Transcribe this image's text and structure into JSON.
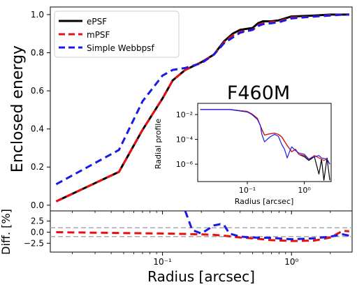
{
  "chart_data": [
    {
      "type": "line",
      "xscale": "log",
      "xlim": [
        0.0135,
        2.95
      ],
      "ylim": [
        -0.03,
        1.04
      ],
      "xlabel": "",
      "ylabel": "Enclosed energy",
      "x_ticks": [
        0.1,
        1.0
      ],
      "x_tick_labels": [
        "10⁻¹",
        "10⁰"
      ],
      "y_ticks": [
        0.0,
        0.2,
        0.4,
        0.6,
        0.8,
        1.0
      ],
      "y_tick_labels": [
        "0.0",
        "0.2",
        "0.4",
        "0.6",
        "0.8",
        "1.0"
      ],
      "grid": false,
      "legend_position": "top-left",
      "annotation": "F460M",
      "series": [
        {
          "name": "ePSF",
          "color": "#000000",
          "dash": "solid",
          "x": [
            0.015,
            0.046,
            0.07,
            0.1,
            0.12,
            0.15,
            0.2,
            0.25,
            0.3,
            0.35,
            0.4,
            0.5,
            0.55,
            0.6,
            0.7,
            0.8,
            1.0,
            1.5,
            2.0,
            2.5,
            2.8
          ],
          "y": [
            0.02,
            0.175,
            0.395,
            0.56,
            0.655,
            0.71,
            0.75,
            0.79,
            0.86,
            0.9,
            0.92,
            0.93,
            0.955,
            0.965,
            0.965,
            0.97,
            0.99,
            0.995,
            1.0,
            1.0,
            1.0
          ]
        },
        {
          "name": "mPSF",
          "color": "#e8100f",
          "dash": "dashed",
          "x": [
            0.015,
            0.046,
            0.07,
            0.1,
            0.12,
            0.15,
            0.2,
            0.25,
            0.3,
            0.35,
            0.4,
            0.5,
            0.55,
            0.6,
            0.7,
            0.8,
            1.0,
            1.5,
            2.0,
            2.5,
            2.8
          ],
          "y": [
            0.02,
            0.175,
            0.395,
            0.56,
            0.655,
            0.71,
            0.75,
            0.79,
            0.855,
            0.89,
            0.91,
            0.92,
            0.945,
            0.955,
            0.96,
            0.965,
            0.985,
            0.99,
            0.998,
            1.0,
            1.0
          ]
        },
        {
          "name": "Simple Webbpsf",
          "color": "#1a1ae6",
          "dash": "dashed",
          "x": [
            0.015,
            0.046,
            0.07,
            0.1,
            0.12,
            0.15,
            0.2,
            0.25,
            0.3,
            0.35,
            0.4,
            0.5,
            0.55,
            0.6,
            0.7,
            0.8,
            1.0,
            1.5,
            2.0,
            2.5,
            2.8
          ],
          "y": [
            0.11,
            0.29,
            0.545,
            0.68,
            0.71,
            0.72,
            0.745,
            0.79,
            0.85,
            0.88,
            0.905,
            0.92,
            0.94,
            0.95,
            0.955,
            0.96,
            0.98,
            0.99,
            0.995,
            1.0,
            1.0
          ]
        }
      ]
    },
    {
      "type": "line",
      "xscale": "log",
      "yscale": "log",
      "xlim": [
        0.0135,
        2.95
      ],
      "ylim_exponent": [
        -7.4,
        -1.1
      ],
      "xlabel": "Radius [arcsec]",
      "ylabel": "Radial profile",
      "x_ticks": [
        0.1,
        1.0
      ],
      "x_tick_labels": [
        "10⁻¹",
        "10⁰"
      ],
      "y_tick_exponents": [
        -2,
        -4,
        -6
      ],
      "y_tick_labels": [
        "10⁻²",
        "10⁻⁴",
        "10⁻⁶"
      ],
      "grid": false,
      "series": [
        {
          "name": "ePSF",
          "color": "#000000",
          "x": [
            0.015,
            0.05,
            0.1,
            0.12,
            0.15,
            0.18,
            0.2,
            0.25,
            0.3,
            0.35,
            0.4,
            0.5,
            0.6,
            0.7,
            0.8,
            1.0,
            1.2,
            1.5,
            1.8,
            2.0,
            2.2,
            2.5,
            2.8
          ],
          "log10_y": [
            -1.6,
            -1.6,
            -1.75,
            -1.95,
            -2.3,
            -3.2,
            -3.65,
            -3.55,
            -3.5,
            -3.6,
            -3.8,
            -4.5,
            -5.0,
            -4.8,
            -5.2,
            -5.4,
            -5.7,
            -5.4,
            -6.8,
            -5.6,
            -7.3,
            -5.5,
            -7.3
          ]
        },
        {
          "name": "mPSF",
          "color": "#e8100f",
          "x": [
            0.015,
            0.05,
            0.1,
            0.12,
            0.15,
            0.18,
            0.2,
            0.25,
            0.3,
            0.35,
            0.4,
            0.5,
            0.6,
            0.7,
            0.8,
            1.0,
            1.2,
            1.5,
            1.8,
            2.0,
            2.2,
            2.5,
            2.8
          ],
          "log10_y": [
            -1.6,
            -1.6,
            -1.75,
            -1.95,
            -2.3,
            -3.2,
            -3.65,
            -3.55,
            -3.5,
            -3.6,
            -3.8,
            -4.5,
            -5.0,
            -4.8,
            -5.2,
            -5.3,
            -5.6,
            -5.3,
            -5.5,
            -5.6,
            -5.7,
            -5.6,
            -6.0
          ]
        },
        {
          "name": "Simple Webbpsf",
          "color": "#1a1ae6",
          "x": [
            0.015,
            0.05,
            0.1,
            0.12,
            0.15,
            0.17,
            0.18,
            0.2,
            0.25,
            0.3,
            0.35,
            0.4,
            0.45,
            0.5,
            0.55,
            0.6,
            0.7,
            0.8,
            1.0,
            1.2,
            1.5,
            1.8,
            2.0,
            2.5,
            2.8
          ],
          "log10_y": [
            -1.6,
            -1.6,
            -1.8,
            -2.0,
            -2.4,
            -2.9,
            -3.6,
            -4.2,
            -3.8,
            -3.6,
            -3.75,
            -4.4,
            -4.8,
            -5.5,
            -5.0,
            -4.6,
            -4.9,
            -5.1,
            -5.2,
            -5.6,
            -5.4,
            -5.3,
            -5.5,
            -5.6,
            -6.0
          ]
        }
      ]
    },
    {
      "type": "line",
      "xscale": "log",
      "xlim": [
        0.0135,
        2.95
      ],
      "ylim": [
        -4.5,
        4.8
      ],
      "xlabel": "Radius [arcsec]",
      "ylabel": "Diff. [%]",
      "x_ticks": [
        0.1,
        1.0
      ],
      "x_tick_labels": [
        "10⁻¹",
        "10⁰"
      ],
      "y_ticks": [
        2.5,
        0.0,
        -2.5
      ],
      "y_tick_labels": [
        "2.5",
        "0.0",
        "−2.5"
      ],
      "reference_lines": [
        1.0,
        -1.0
      ],
      "grid": false,
      "series": [
        {
          "name": "mPSF",
          "color": "#e8100f",
          "dash": "dashed",
          "x": [
            0.015,
            0.05,
            0.1,
            0.15,
            0.2,
            0.25,
            0.3,
            0.4,
            0.5,
            0.7,
            1.0,
            1.5,
            2.0,
            2.5,
            2.8
          ],
          "y": [
            0.0,
            -0.2,
            -0.3,
            -0.4,
            -0.5,
            -0.6,
            -0.8,
            -1.2,
            -1.4,
            -1.8,
            -2.0,
            -1.9,
            -1.2,
            0.3,
            0.2
          ]
        },
        {
          "name": "Simple Webbpsf",
          "color": "#1a1ae6",
          "dash": "dashed",
          "x": [
            0.15,
            0.17,
            0.2,
            0.25,
            0.28,
            0.3,
            0.33,
            0.4,
            0.5,
            0.7,
            1.0,
            1.5,
            2.0,
            2.5,
            2.8
          ],
          "y": [
            5.5,
            0.5,
            -0.3,
            1.5,
            1.8,
            1.6,
            -0.3,
            -1.0,
            -1.2,
            -1.3,
            -1.6,
            -1.4,
            -1.0,
            -0.5,
            -0.8
          ]
        }
      ]
    }
  ]
}
